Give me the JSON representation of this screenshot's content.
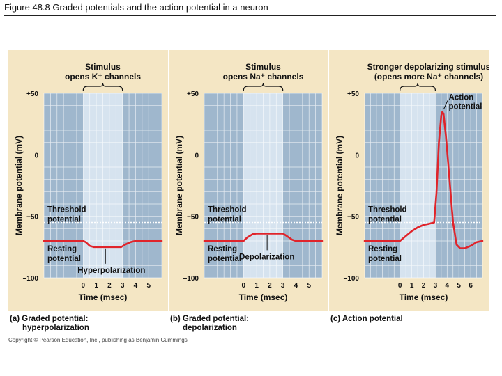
{
  "slide_title": "Figure 48.8  Graded potentials and the action potential in a neuron",
  "copyright": "Copyright © Pearson Education, Inc., publishing as Benjamin Cummings",
  "colors": {
    "panel_bg": "#f4e6c4",
    "plot_bg": "#9fb7cd",
    "stim_bg": "#d6e3ef",
    "grid": "#ffffff",
    "trace": "#e0242b",
    "threshold": "#ffffff"
  },
  "chart_data": [
    {
      "type": "line",
      "caption_line1": "(a) Graded potential:",
      "caption_line2": "hyperpolarization",
      "stimulus_line1": "Stimulus",
      "stimulus_line2": "opens K⁺ channels",
      "xlabel": "Time (msec)",
      "ylabel": "Membrane potential (mV)",
      "xlim": [
        -3,
        6
      ],
      "ylim": [
        -100,
        50
      ],
      "stimulus_window": [
        0,
        3
      ],
      "xticks": [
        0,
        1,
        2,
        3,
        4,
        5
      ],
      "yticks": [
        50,
        0,
        -50,
        -100
      ],
      "ytick_labels": [
        "+50",
        "0",
        "−50",
        "−100"
      ],
      "threshold_mv": -55,
      "threshold_label_line1": "Threshold",
      "threshold_label_line2": "potential",
      "resting_label_line1": "Resting",
      "resting_label_line2": "potential",
      "event_label": "Hyperpolarization",
      "event_point": [
        1.7,
        -75
      ],
      "series": [
        {
          "name": "membrane potential",
          "x": [
            -3,
            0,
            0.2,
            0.5,
            0.8,
            1,
            2,
            2.9,
            3.2,
            3.6,
            4,
            6
          ],
          "y": [
            -70,
            -70,
            -71,
            -74,
            -75,
            -75,
            -75,
            -75,
            -73,
            -71,
            -70,
            -70
          ]
        }
      ]
    },
    {
      "type": "line",
      "caption_line1": "(b) Graded potential:",
      "caption_line2": "depolarization",
      "stimulus_line1": "Stimulus",
      "stimulus_line2": "opens Na⁺ channels",
      "xlabel": "Time (msec)",
      "ylabel": "Membrane potential (mV)",
      "xlim": [
        -3,
        6
      ],
      "ylim": [
        -100,
        50
      ],
      "stimulus_window": [
        0,
        3
      ],
      "xticks": [
        0,
        1,
        2,
        3,
        4,
        5
      ],
      "yticks": [
        50,
        0,
        -50,
        -100
      ],
      "ytick_labels": [
        "+50",
        "0",
        "−50",
        "−100"
      ],
      "threshold_mv": -55,
      "threshold_label_line1": "Threshold",
      "threshold_label_line2": "potential",
      "resting_label_line1": "Resting",
      "resting_label_line2": "potential",
      "event_label": "Depolarization",
      "event_point": [
        1.8,
        -64
      ],
      "series": [
        {
          "name": "membrane potential",
          "x": [
            -3,
            0,
            0.3,
            0.7,
            1,
            2,
            3,
            3.3,
            3.7,
            4,
            6
          ],
          "y": [
            -70,
            -70,
            -67,
            -64.5,
            -64,
            -64,
            -64,
            -66,
            -69,
            -70,
            -70
          ]
        }
      ]
    },
    {
      "type": "line",
      "caption_line1": "(c) Action potential",
      "caption_line2": "",
      "stimulus_line1": "Stronger depolarizing stimulus",
      "stimulus_line2": "(opens more Na⁺ channels)",
      "xlabel": "Time (msec)",
      "ylabel": "Membrane potential (mV)",
      "xlim": [
        -3,
        7
      ],
      "ylim": [
        -100,
        50
      ],
      "stimulus_window": [
        0,
        3
      ],
      "xticks": [
        0,
        1,
        2,
        3,
        4,
        5,
        6
      ],
      "yticks": [
        50,
        0,
        -50,
        -100
      ],
      "ytick_labels": [
        "+50",
        "0",
        "−50",
        "−100"
      ],
      "threshold_mv": -55,
      "threshold_label_line1": "Threshold",
      "threshold_label_line2": "potential",
      "resting_label_line1": "Resting",
      "resting_label_line2": "potential",
      "peak_label_line1": "Action",
      "peak_label_line2": "potential",
      "peak_point": [
        3.6,
        35
      ],
      "series": [
        {
          "name": "membrane potential",
          "x": [
            -3,
            0,
            0.5,
            1,
            1.5,
            2,
            2.5,
            2.9,
            3.1,
            3.3,
            3.5,
            3.6,
            3.7,
            3.9,
            4.2,
            4.5,
            4.8,
            5.1,
            5.5,
            6,
            6.5,
            7
          ],
          "y": [
            -70,
            -70,
            -66,
            -62,
            -59,
            -57,
            -56,
            -55,
            -30,
            10,
            32,
            35,
            33,
            15,
            -20,
            -55,
            -73,
            -76,
            -76,
            -74,
            -71,
            -70
          ]
        }
      ]
    }
  ]
}
